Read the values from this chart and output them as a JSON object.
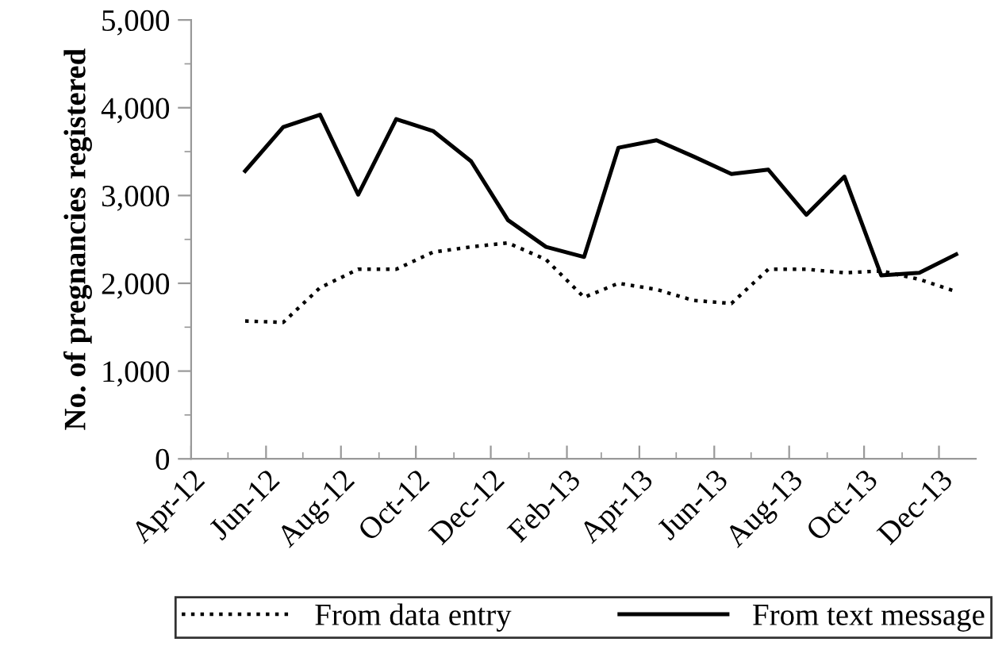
{
  "chart_data": {
    "type": "line",
    "ylabel": "No. of pregnancies registered",
    "x": [
      "2012-05-15",
      "2012-06-15",
      "2012-07-15",
      "2012-08-15",
      "2012-09-15",
      "2012-10-15",
      "2012-11-15",
      "2012-12-15",
      "2013-01-15",
      "2013-02-15",
      "2013-03-15",
      "2013-04-15",
      "2013-05-15",
      "2013-06-15",
      "2013-07-15",
      "2013-08-15",
      "2013-09-15",
      "2013-10-15",
      "2013-11-15",
      "2013-12-15"
    ],
    "series": [
      {
        "name": "From data entry",
        "color": "#000000",
        "line_style": "dotted",
        "values": [
          1570,
          1555,
          1950,
          2160,
          2160,
          2355,
          2415,
          2460,
          2270,
          1840,
          2000,
          1930,
          1805,
          1770,
          2160,
          2160,
          2120,
          2140,
          2045,
          1905
        ]
      },
      {
        "name": "From text message",
        "color": "#000000",
        "line_style": "solid",
        "values": [
          3280,
          3780,
          3920,
          3010,
          3870,
          3735,
          3390,
          2720,
          2415,
          2300,
          3545,
          3630,
          3445,
          3245,
          3295,
          2780,
          3215,
          2090,
          2120,
          2330
        ]
      }
    ],
    "xlim": [
      "2012-04-01",
      "2013-12-31"
    ],
    "xticks": [
      {
        "value": "2012-04-01",
        "label": "Apr-12"
      },
      {
        "value": "2012-06-01",
        "label": "Jun-12"
      },
      {
        "value": "2012-08-01",
        "label": "Aug-12"
      },
      {
        "value": "2012-10-01",
        "label": "Oct-12"
      },
      {
        "value": "2012-12-01",
        "label": "Dec-12"
      },
      {
        "value": "2013-02-01",
        "label": "Feb-13"
      },
      {
        "value": "2013-04-01",
        "label": "Apr-13"
      },
      {
        "value": "2013-06-01",
        "label": "Jun-13"
      },
      {
        "value": "2013-08-01",
        "label": "Aug-13"
      },
      {
        "value": "2013-10-01",
        "label": "Oct-13"
      },
      {
        "value": "2013-12-01",
        "label": "Dec-13"
      }
    ],
    "ylim": [
      0,
      5000
    ],
    "yticks": [
      {
        "value": 0,
        "label": "0"
      },
      {
        "value": 1000,
        "label": "1,000"
      },
      {
        "value": 2000,
        "label": "2,000"
      },
      {
        "value": 3000,
        "label": "3,000"
      },
      {
        "value": 4000,
        "label": "4,000"
      },
      {
        "value": 5000,
        "label": "5,000"
      }
    ],
    "grid": false,
    "legend": "bottom",
    "marker": "none"
  }
}
